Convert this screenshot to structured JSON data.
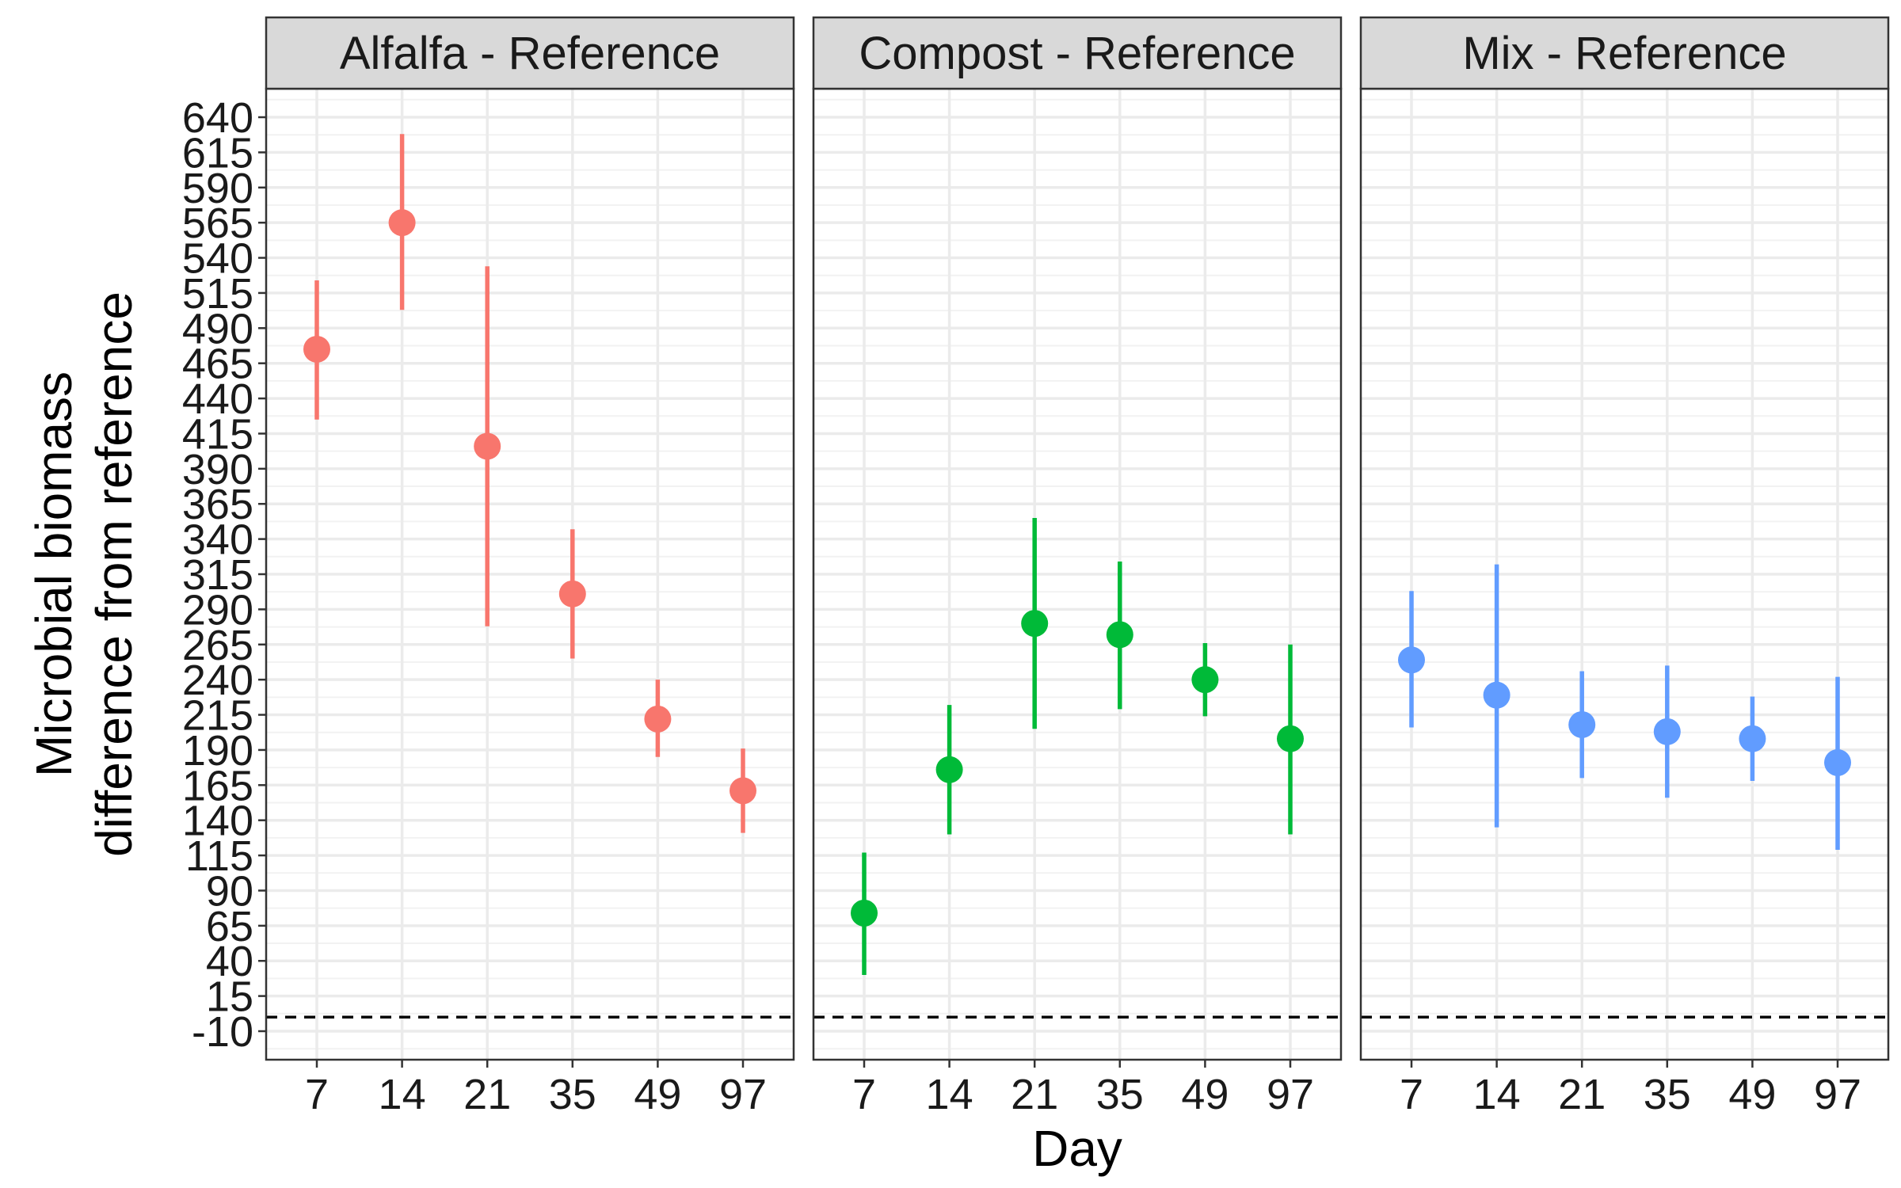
{
  "chart_data": {
    "type": "scatter",
    "subtype": "point-range faceted",
    "xlabel": "Day",
    "ylabel_lines": [
      "Microbial biomass",
      "difference from reference"
    ],
    "categories": [
      "7",
      "14",
      "21",
      "35",
      "49",
      "97"
    ],
    "y_ticks": [
      -10,
      15,
      40,
      65,
      90,
      115,
      140,
      165,
      190,
      215,
      240,
      265,
      290,
      315,
      340,
      365,
      390,
      415,
      440,
      465,
      490,
      515,
      540,
      565,
      590,
      615,
      640
    ],
    "ylim": [
      -30,
      660
    ],
    "reference_line": 0,
    "grid": true,
    "legend": "none",
    "panels": [
      {
        "title": "Alfalfa - Reference",
        "color": "#F8766D",
        "points": [
          {
            "x": "7",
            "y": 475,
            "lo": 425,
            "hi": 524
          },
          {
            "x": "14",
            "y": 565,
            "lo": 503,
            "hi": 628
          },
          {
            "x": "21",
            "y": 406,
            "lo": 278,
            "hi": 534
          },
          {
            "x": "35",
            "y": 301,
            "lo": 255,
            "hi": 347
          },
          {
            "x": "49",
            "y": 212,
            "lo": 185,
            "hi": 240
          },
          {
            "x": "97",
            "y": 161,
            "lo": 131,
            "hi": 191
          }
        ]
      },
      {
        "title": "Compost - Reference",
        "color": "#00BA38",
        "points": [
          {
            "x": "7",
            "y": 74,
            "lo": 30,
            "hi": 117
          },
          {
            "x": "14",
            "y": 176,
            "lo": 130,
            "hi": 222
          },
          {
            "x": "21",
            "y": 280,
            "lo": 205,
            "hi": 355
          },
          {
            "x": "35",
            "y": 272,
            "lo": 219,
            "hi": 324
          },
          {
            "x": "49",
            "y": 240,
            "lo": 214,
            "hi": 266
          },
          {
            "x": "97",
            "y": 198,
            "lo": 130,
            "hi": 265
          }
        ]
      },
      {
        "title": "Mix - Reference",
        "color": "#619CFF",
        "points": [
          {
            "x": "7",
            "y": 254,
            "lo": 206,
            "hi": 303
          },
          {
            "x": "14",
            "y": 229,
            "lo": 135,
            "hi": 322
          },
          {
            "x": "21",
            "y": 208,
            "lo": 170,
            "hi": 246
          },
          {
            "x": "35",
            "y": 203,
            "lo": 156,
            "hi": 250
          },
          {
            "x": "49",
            "y": 198,
            "lo": 168,
            "hi": 228
          },
          {
            "x": "97",
            "y": 181,
            "lo": 119,
            "hi": 242
          }
        ]
      }
    ]
  }
}
